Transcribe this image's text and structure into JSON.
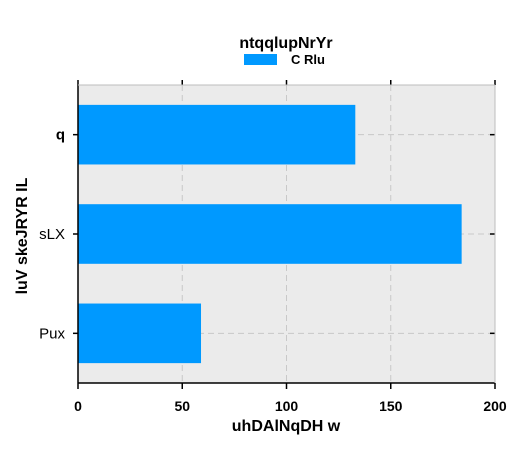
{
  "chart_data": {
    "type": "bar",
    "orientation": "horizontal",
    "title": "ntqqlupNrYr",
    "xlabel": "uhDAlNqDH  w",
    "ylabel": "luV skeJRYR IL",
    "categories": [
      "q",
      "sLX",
      "Pux"
    ],
    "series": [
      {
        "name": "C Rlu",
        "values": [
          133,
          184,
          59
        ],
        "color": "#0099ff"
      }
    ],
    "xlim": [
      0,
      200
    ],
    "xticks": [
      0,
      50,
      100,
      150,
      200
    ],
    "grid": true,
    "legend_position": "top-center",
    "background": "#ebebeb"
  }
}
